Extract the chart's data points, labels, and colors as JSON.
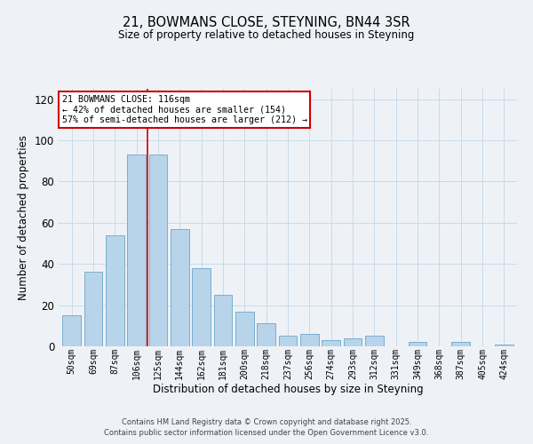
{
  "title_line1": "21, BOWMANS CLOSE, STEYNING, BN44 3SR",
  "title_line2": "Size of property relative to detached houses in Steyning",
  "xlabel": "Distribution of detached houses by size in Steyning",
  "ylabel": "Number of detached properties",
  "bar_labels": [
    "50sqm",
    "69sqm",
    "87sqm",
    "106sqm",
    "125sqm",
    "144sqm",
    "162sqm",
    "181sqm",
    "200sqm",
    "218sqm",
    "237sqm",
    "256sqm",
    "274sqm",
    "293sqm",
    "312sqm",
    "331sqm",
    "349sqm",
    "368sqm",
    "387sqm",
    "405sqm",
    "424sqm"
  ],
  "bar_values": [
    15,
    36,
    54,
    93,
    93,
    57,
    38,
    25,
    17,
    11,
    5,
    6,
    3,
    4,
    5,
    0,
    2,
    0,
    2,
    0,
    1
  ],
  "bar_color": "#b8d4ea",
  "bar_edge_color": "#7aaed0",
  "vline_x": 3.5,
  "vline_color": "#cc0000",
  "annotation_title": "21 BOWMANS CLOSE: 116sqm",
  "annotation_line1": "← 42% of detached houses are smaller (154)",
  "annotation_line2": "57% of semi-detached houses are larger (212) →",
  "annotation_box_facecolor": "#ffffff",
  "annotation_box_edgecolor": "#cc0000",
  "ylim": [
    0,
    125
  ],
  "yticks": [
    0,
    20,
    40,
    60,
    80,
    100,
    120
  ],
  "grid_color": "#c8daea",
  "bg_color": "#eef2f7",
  "footer_line1": "Contains HM Land Registry data © Crown copyright and database right 2025.",
  "footer_line2": "Contains public sector information licensed under the Open Government Licence v3.0."
}
